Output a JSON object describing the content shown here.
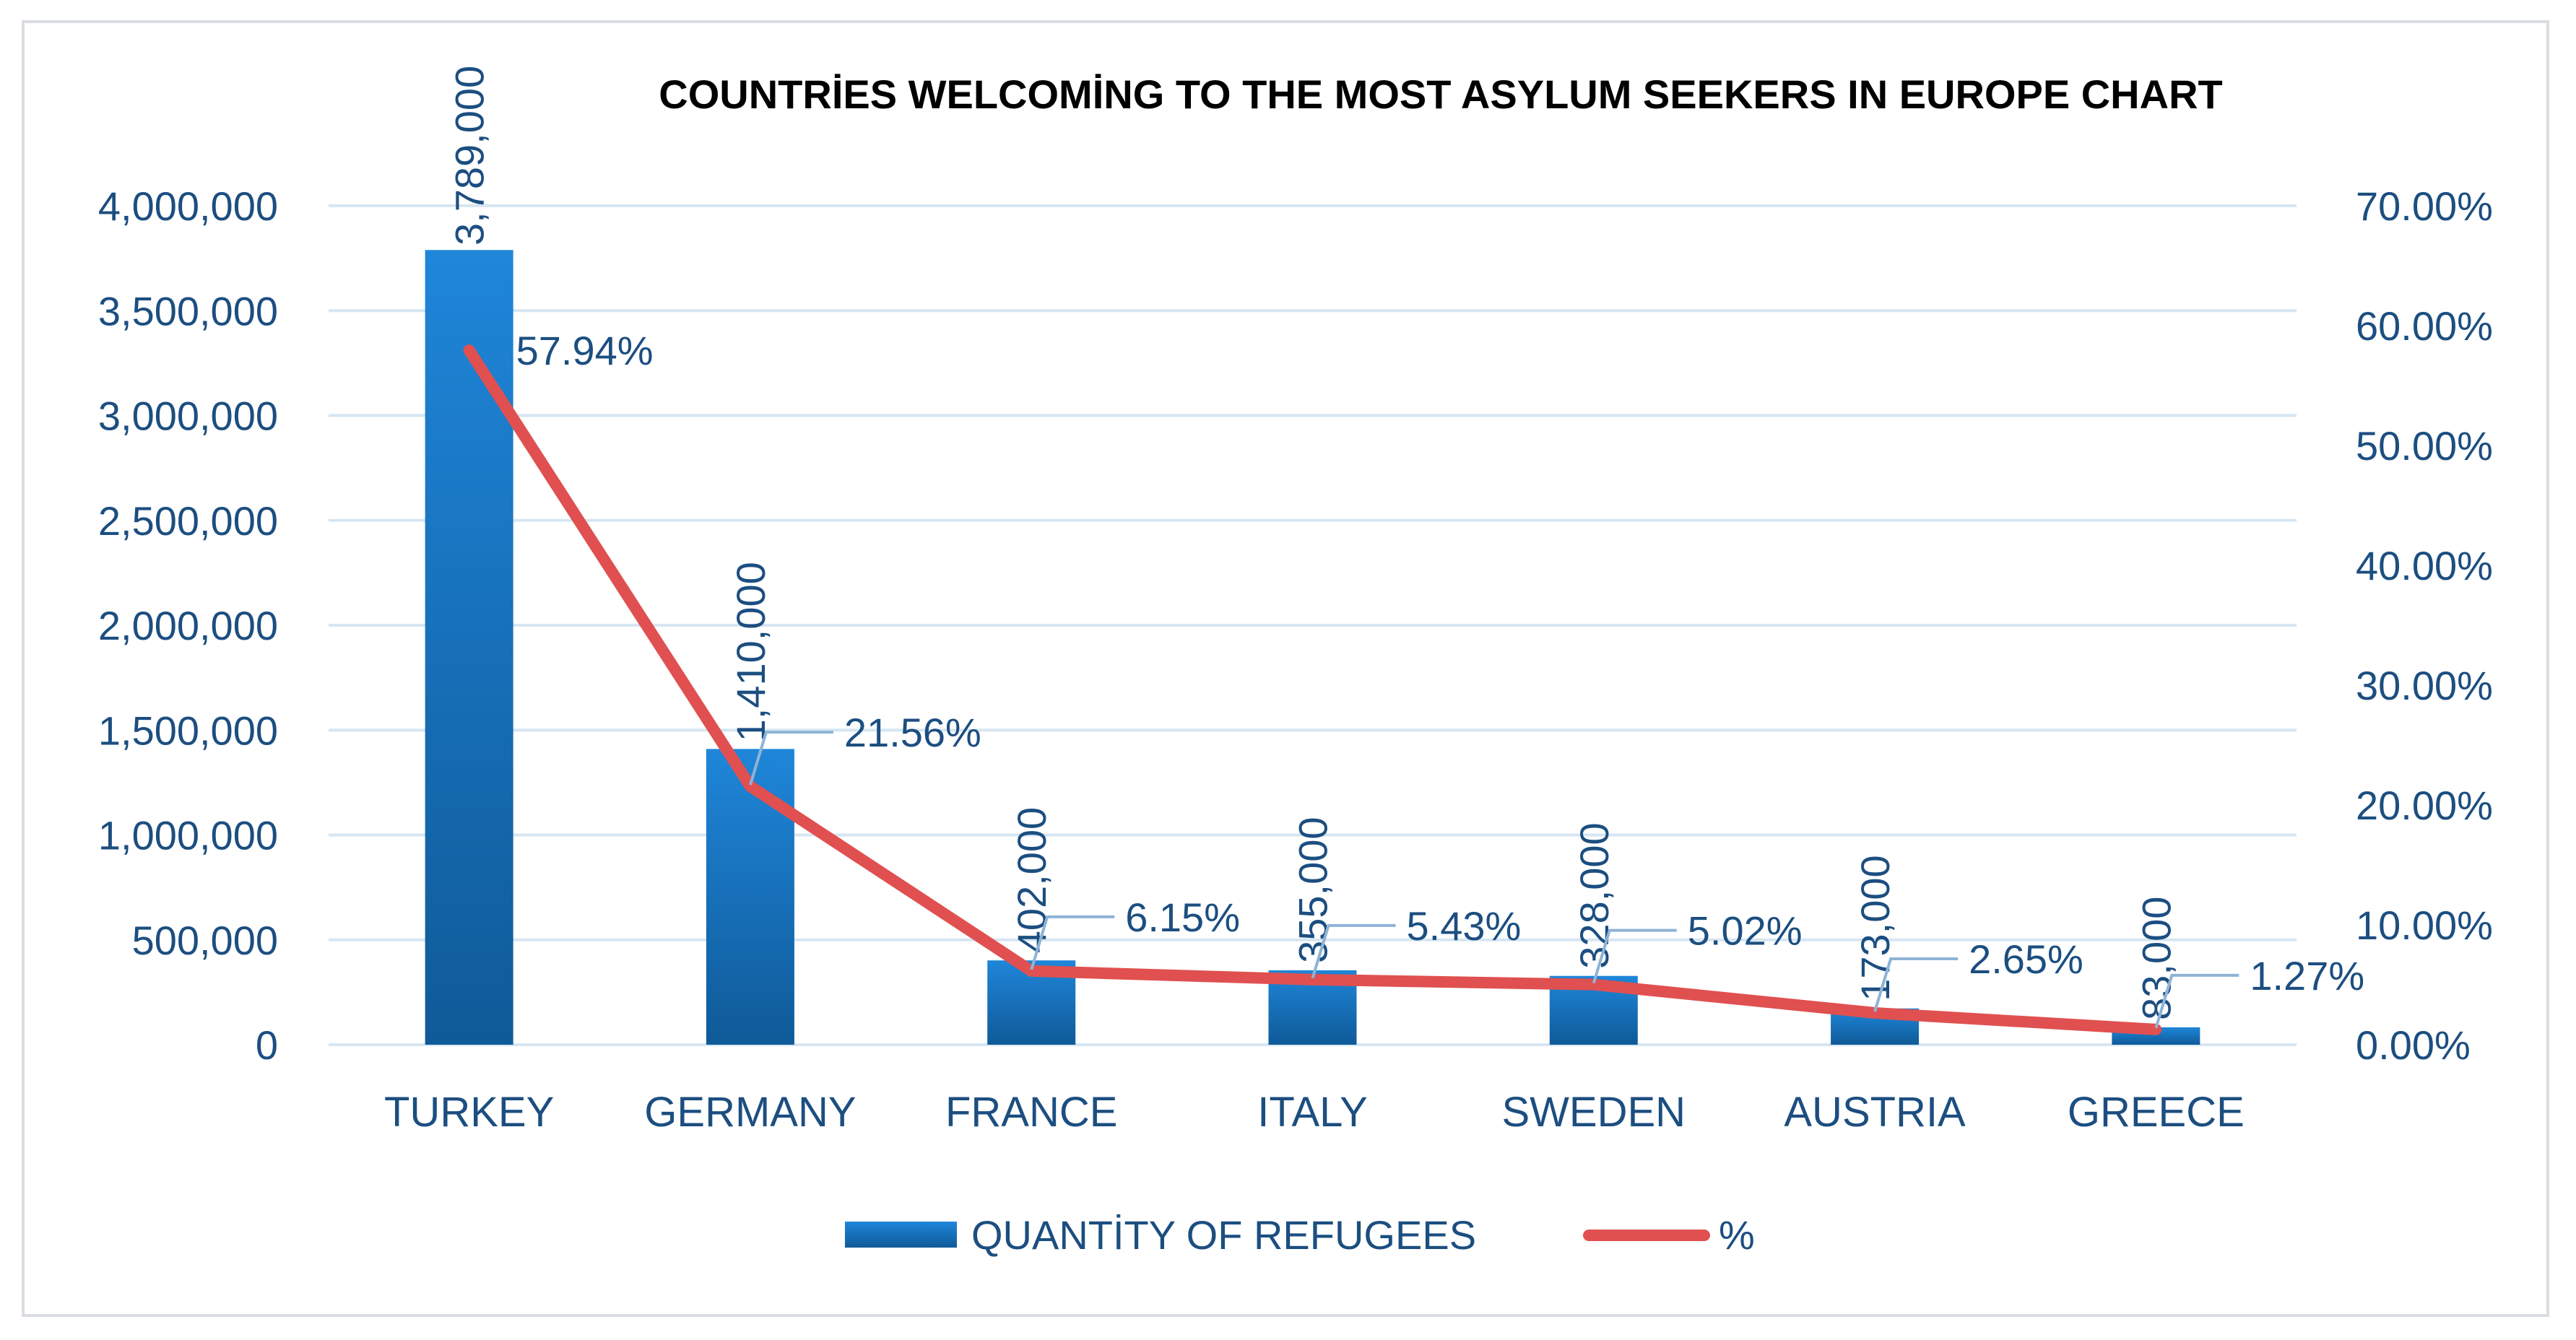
{
  "chart_data": {
    "type": "bar+line",
    "title": "COUNTRİES WELCOMİNG TO THE MOST ASYLUM SEEKERS IN EUROPE CHART",
    "categories": [
      "TURKEY",
      "GERMANY",
      "FRANCE",
      "ITALY",
      "SWEDEN",
      "AUSTRIA",
      "GREECE"
    ],
    "series": [
      {
        "name": "QUANTİTY OF REFUGEES",
        "kind": "bar",
        "axis": "left",
        "values": [
          3789000,
          1410000,
          402000,
          355000,
          328000,
          173000,
          83000
        ],
        "labels": [
          "3,789,000",
          "1,410,000",
          "402,000",
          "355,000",
          "328,000",
          "173,000",
          "83,000"
        ],
        "color": "#1f78c8"
      },
      {
        "name": "%",
        "kind": "line",
        "axis": "right",
        "values": [
          57.94,
          21.56,
          6.15,
          5.43,
          5.02,
          2.65,
          1.27
        ],
        "labels": [
          "57.94%",
          "21.56%",
          "6.15%",
          "5.43%",
          "5.02%",
          "2.65%",
          "1.27%"
        ],
        "color": "#e05050"
      }
    ],
    "y_left": {
      "range": [
        0,
        4000000
      ],
      "ticks": [
        0,
        500000,
        1000000,
        1500000,
        2000000,
        2500000,
        3000000,
        3500000,
        4000000
      ],
      "tick_labels": [
        "0",
        "500,000",
        "1,000,000",
        "1,500,000",
        "2,000,000",
        "2,500,000",
        "3,000,000",
        "3,500,000",
        "4,000,000"
      ]
    },
    "y_right": {
      "range": [
        0,
        70
      ],
      "ticks": [
        0,
        10,
        20,
        30,
        40,
        50,
        60,
        70
      ],
      "tick_labels": [
        "0.00%",
        "10.00%",
        "20.00%",
        "30.00%",
        "40.00%",
        "50.00%",
        "60.00%",
        "70.00%"
      ]
    },
    "grid": true,
    "legend_position": "bottom",
    "text_color": "#1c4e80",
    "grid_color": "#d6e6f2"
  }
}
